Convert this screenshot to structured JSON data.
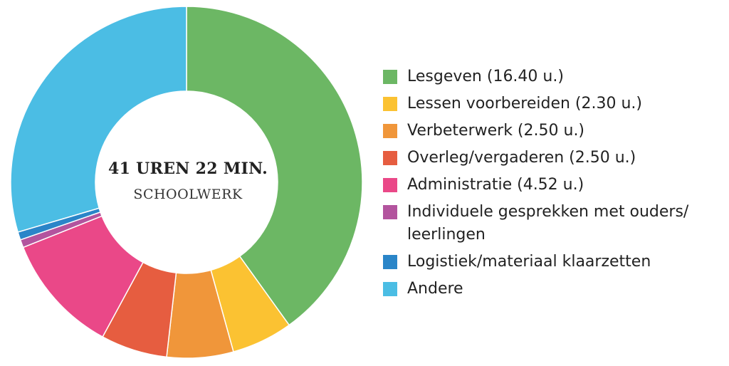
{
  "chart_data": {
    "type": "pie",
    "center_title": "41 UREN 22 MIN.",
    "center_subtitle": "SCHOOLWERK",
    "legend_position": "right",
    "slices": [
      {
        "label": "Lesgeven (16.40 u.)",
        "value": 16.4,
        "color": "#6cb764"
      },
      {
        "label": "Lessen voorbereiden (2.30 u.)",
        "value": 2.3,
        "color": "#fbc232"
      },
      {
        "label": "Verbeterwerk (2.50 u.)",
        "value": 2.5,
        "color": "#f0963a"
      },
      {
        "label": "Overleg/vergaderen (2.50 u.)",
        "value": 2.5,
        "color": "#e65d40"
      },
      {
        "label": "Administratie (4.52 u.)",
        "value": 4.52,
        "color": "#ea4888"
      },
      {
        "label": "Individuele gesprekken met ouders/ leerlingen",
        "value": 0.3,
        "color": "#b3549e"
      },
      {
        "label": "Logistiek/materiaal klaarzetten",
        "value": 0.3,
        "color": "#2a85c8"
      },
      {
        "label": "Andere",
        "value": 12.1,
        "color": "#4bbde4"
      }
    ]
  }
}
